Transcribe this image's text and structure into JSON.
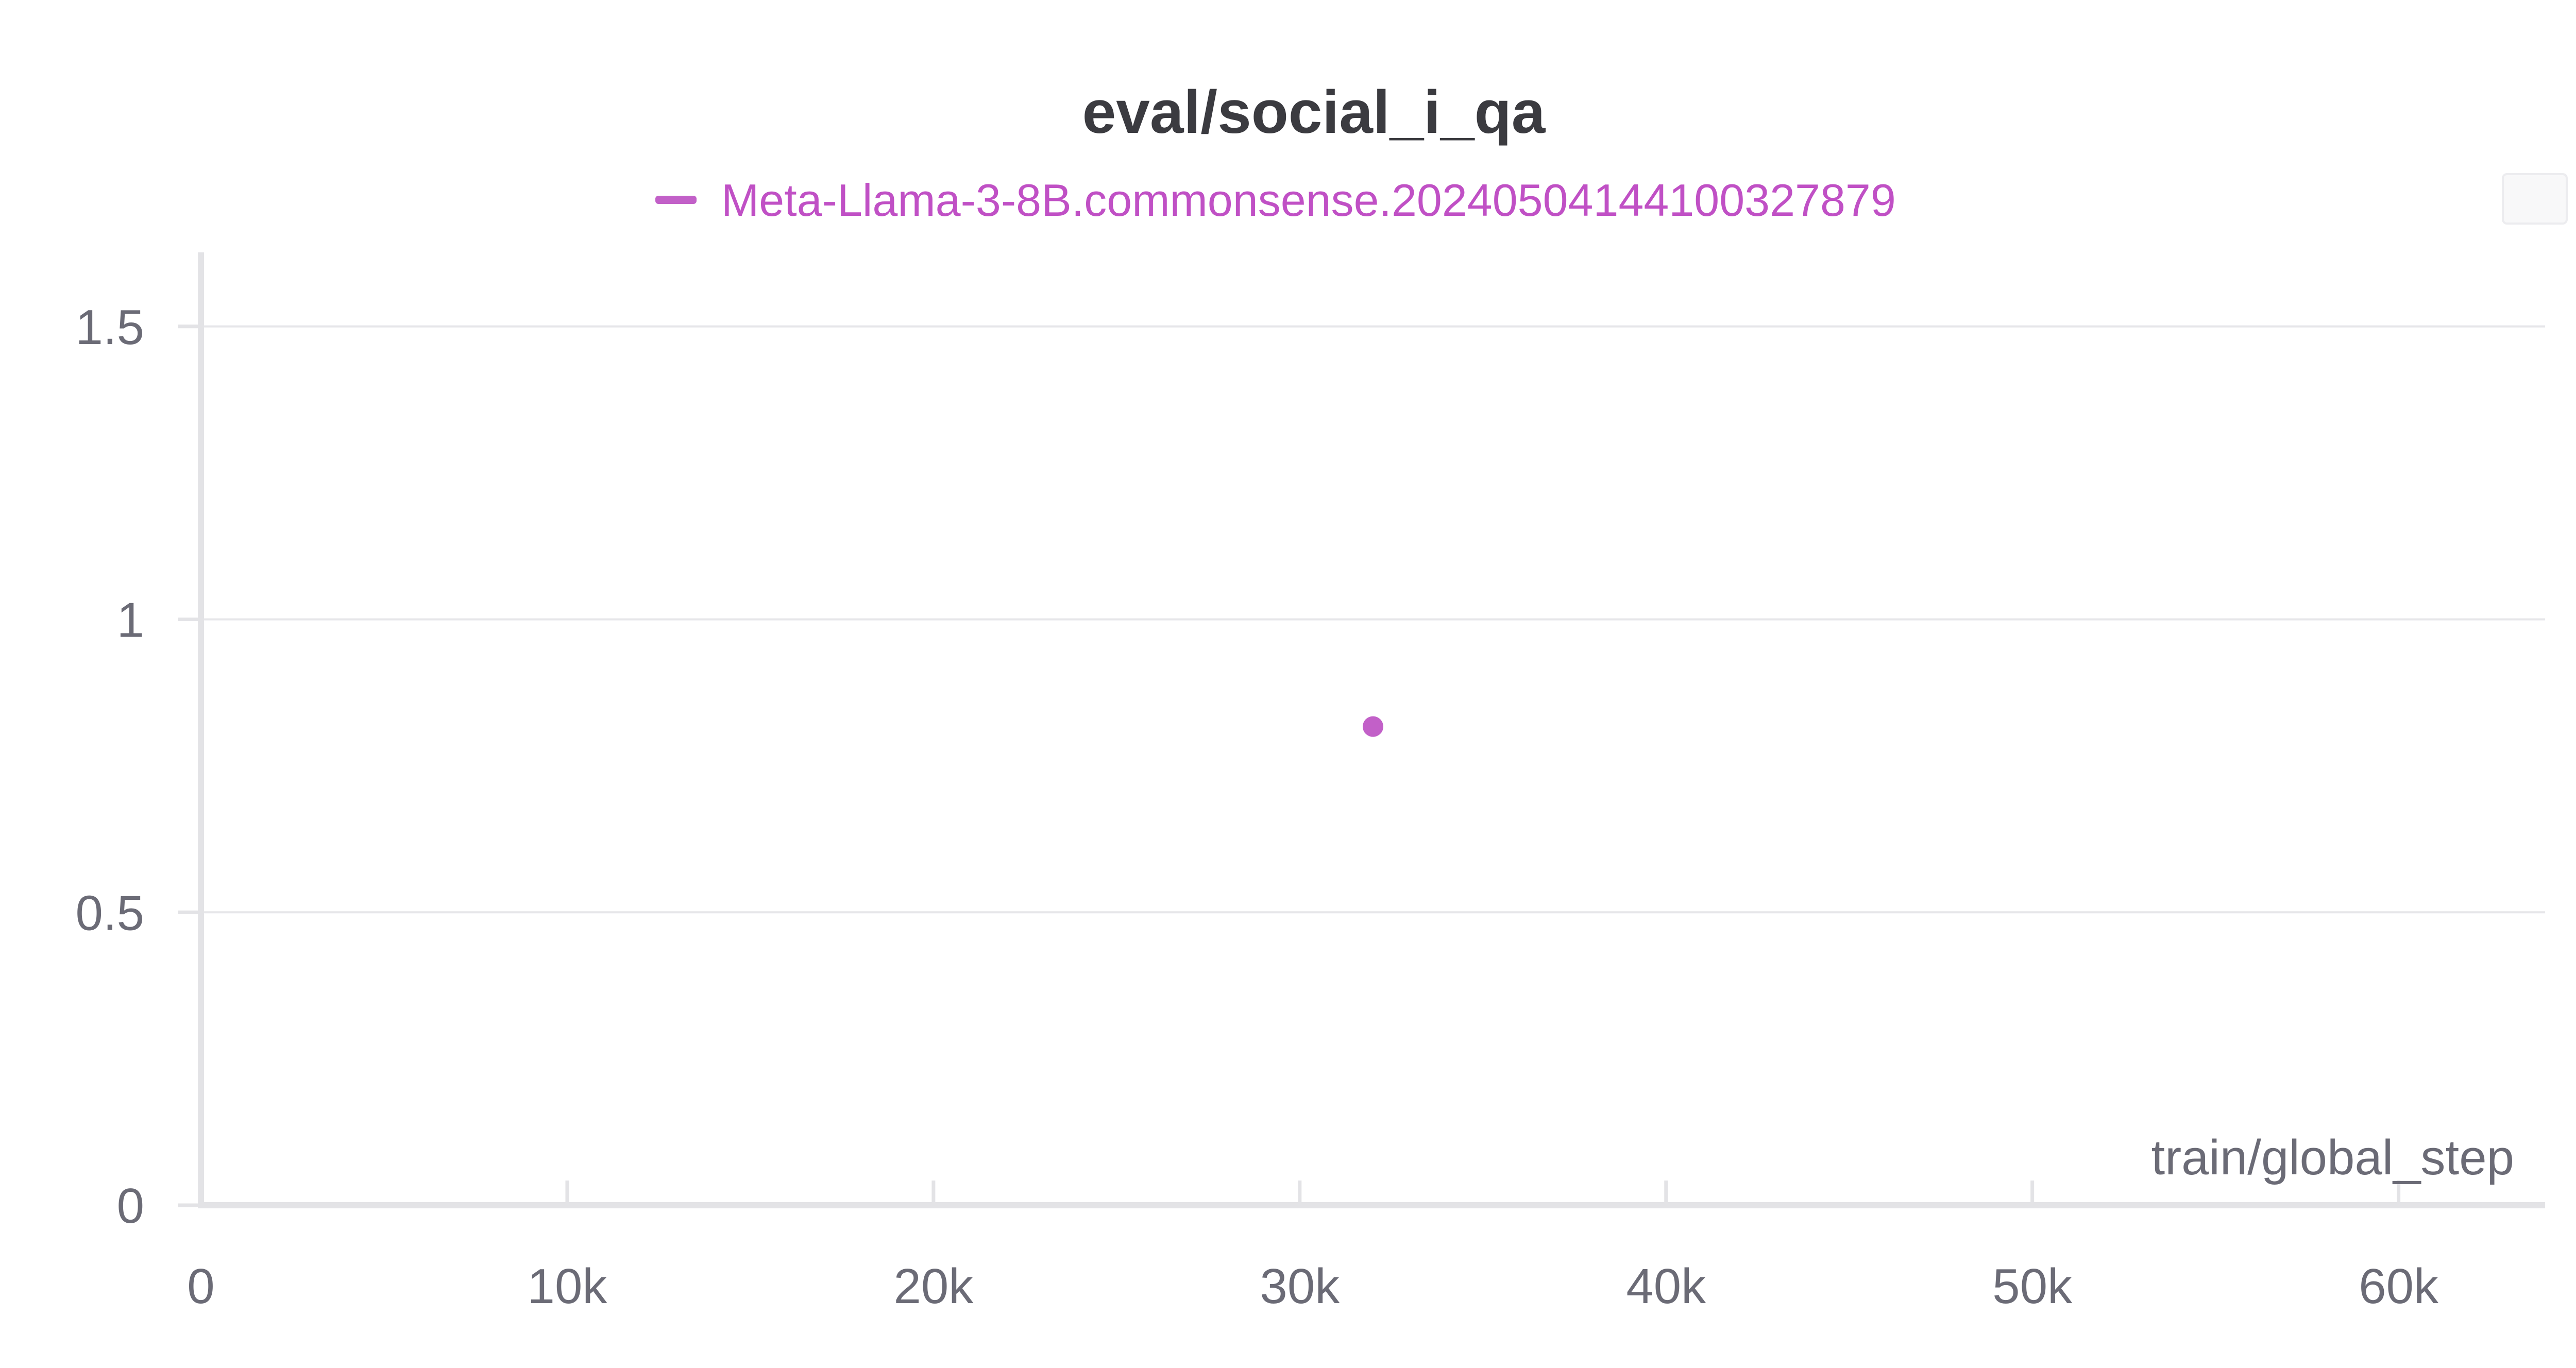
{
  "chart_data": {
    "type": "scatter",
    "title": "eval/social_i_qa",
    "xlabel": "train/global_step",
    "ylabel": "",
    "xlim": [
      0,
      64000
    ],
    "ylim": [
      0,
      1.6
    ],
    "x_ticks": [
      {
        "value": 0,
        "label": "0"
      },
      {
        "value": 10000,
        "label": "10k"
      },
      {
        "value": 20000,
        "label": "20k"
      },
      {
        "value": 30000,
        "label": "30k"
      },
      {
        "value": 40000,
        "label": "40k"
      },
      {
        "value": 50000,
        "label": "50k"
      },
      {
        "value": 60000,
        "label": "60k"
      }
    ],
    "y_ticks": [
      {
        "value": 0,
        "label": "0"
      },
      {
        "value": 0.5,
        "label": "0.5"
      },
      {
        "value": 1,
        "label": "1"
      },
      {
        "value": 1.5,
        "label": "1.5"
      }
    ],
    "grid": true,
    "legend_position": "top-center",
    "series": [
      {
        "name": "Meta-Llama-3-8B.commonsense.20240504144100327879",
        "color": "#c260c8",
        "points": [
          {
            "x": 32000,
            "y": 0.817
          }
        ]
      }
    ]
  }
}
